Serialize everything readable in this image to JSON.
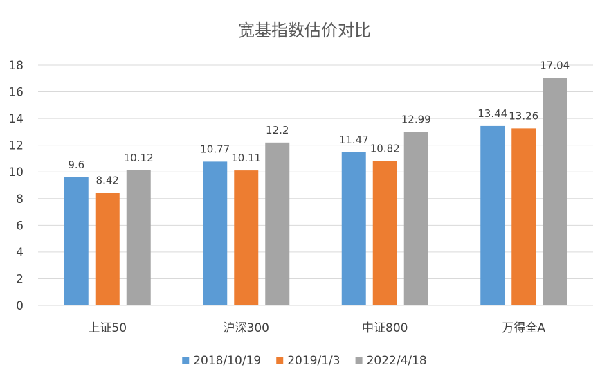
{
  "chart_data": {
    "type": "bar",
    "title": "宽基指数估价对比",
    "xlabel": "",
    "ylabel": "",
    "categories": [
      "上证50",
      "沪深300",
      "中证800",
      "万得全A"
    ],
    "series": [
      {
        "name": "2018/10/19",
        "color": "#5b9bd5",
        "values": [
          9.6,
          10.77,
          11.47,
          13.44
        ],
        "labels": [
          "9.6",
          "10.77",
          "11.47",
          "13.44"
        ]
      },
      {
        "name": "2019/1/3",
        "color": "#ed7d31",
        "values": [
          8.42,
          10.11,
          10.82,
          13.26
        ],
        "labels": [
          "8.42",
          "10.11",
          "10.82",
          "13.26"
        ]
      },
      {
        "name": "2022/4/18",
        "color": "#a5a5a5",
        "values": [
          10.12,
          12.2,
          12.99,
          17.04
        ],
        "labels": [
          "10.12",
          "12.2",
          "12.99",
          "17.04"
        ]
      }
    ],
    "ylim": [
      0,
      18
    ],
    "yticks": [
      "0",
      "2",
      "4",
      "6",
      "8",
      "10",
      "12",
      "14",
      "16",
      "18"
    ],
    "grid": true,
    "legend_position": "bottom"
  }
}
